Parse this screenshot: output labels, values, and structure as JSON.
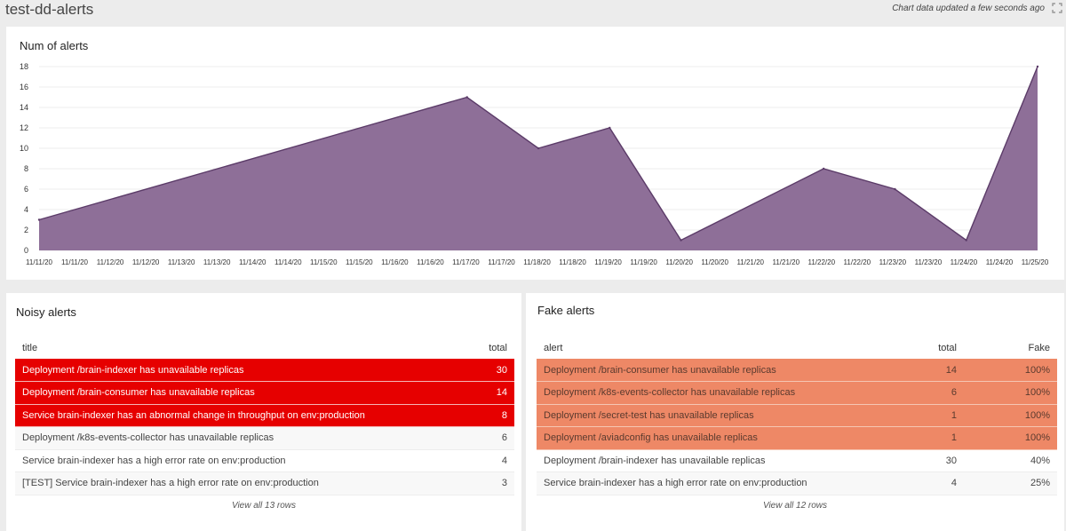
{
  "header": {
    "title": "test-dd-alerts",
    "updated": "Chart data updated a few seconds ago"
  },
  "chart_card": {
    "title": "Num of alerts"
  },
  "chart_data": {
    "type": "area",
    "title": "Num of alerts",
    "xlabel": "",
    "ylabel": "",
    "x": [
      "11/11/20",
      "11/11/20",
      "11/12/20",
      "11/12/20",
      "11/13/20",
      "11/13/20",
      "11/14/20",
      "11/14/20",
      "11/15/20",
      "11/15/20",
      "11/16/20",
      "11/16/20",
      "11/17/20",
      "11/17/20",
      "11/18/20",
      "11/18/20",
      "11/19/20",
      "11/19/20",
      "11/20/20",
      "11/20/20",
      "11/21/20",
      "11/21/20",
      "11/22/20",
      "11/22/20",
      "11/23/20",
      "11/23/20",
      "11/24/20",
      "11/24/20",
      "11/25/20"
    ],
    "points": [
      {
        "day": 0,
        "value": 3
      },
      {
        "day": 6,
        "value": 15
      },
      {
        "day": 7,
        "value": 10
      },
      {
        "day": 8,
        "value": 12
      },
      {
        "day": 9,
        "value": 1
      },
      {
        "day": 11,
        "value": 8
      },
      {
        "day": 12,
        "value": 6
      },
      {
        "day": 13,
        "value": 1
      },
      {
        "day": 14,
        "value": 18
      }
    ],
    "yticks": [
      0,
      2,
      4,
      6,
      8,
      10,
      12,
      14,
      16,
      18
    ],
    "ylim": [
      0,
      18
    ],
    "grid": true,
    "fill_color": "#8e6f98",
    "line_color": "#5b3b68"
  },
  "noisy": {
    "title": "Noisy alerts",
    "columns": [
      "title",
      "total"
    ],
    "rows": [
      {
        "title": "Deployment /brain-indexer has unavailable replicas",
        "total": "30",
        "highlight": true
      },
      {
        "title": "Deployment /brain-consumer has unavailable replicas",
        "total": "14",
        "highlight": true
      },
      {
        "title": "Service brain-indexer has an abnormal change in throughput on env:production",
        "total": "8",
        "highlight": true
      },
      {
        "title": "Deployment /k8s-events-collector has unavailable replicas",
        "total": "6",
        "highlight": false
      },
      {
        "title": "Service brain-indexer has a high error rate on env:production",
        "total": "4",
        "highlight": false
      },
      {
        "title": "[TEST] Service brain-indexer has a high error rate on env:production",
        "total": "3",
        "highlight": false
      }
    ],
    "view_all": "View all 13 rows",
    "highlight_color": "#e60000"
  },
  "fake": {
    "title": "Fake alerts",
    "columns": [
      "alert",
      "total",
      "Fake"
    ],
    "rows": [
      {
        "alert": "Deployment /brain-consumer has unavailable replicas",
        "total": "14",
        "fake": "100%",
        "highlight": true
      },
      {
        "alert": "Deployment /k8s-events-collector has unavailable replicas",
        "total": "6",
        "fake": "100%",
        "highlight": true
      },
      {
        "alert": "Deployment /secret-test has unavailable replicas",
        "total": "1",
        "fake": "100%",
        "highlight": true
      },
      {
        "alert": "Deployment /aviadconfig has unavailable replicas",
        "total": "1",
        "fake": "100%",
        "highlight": true
      },
      {
        "alert": "Deployment /brain-indexer has unavailable replicas",
        "total": "30",
        "fake": "40%",
        "highlight": false
      },
      {
        "alert": "Service brain-indexer has a high error rate on env:production",
        "total": "4",
        "fake": "25%",
        "highlight": false
      }
    ],
    "view_all": "View all 12 rows",
    "highlight_color": "#ee8866"
  }
}
